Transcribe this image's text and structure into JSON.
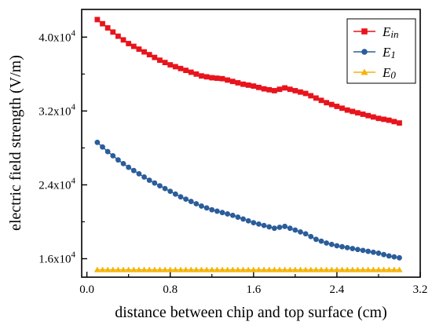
{
  "chart_data": {
    "type": "line",
    "xlabel": "distance between chip and top surface (cm)",
    "ylabel": "electric field strength  (V/m)",
    "xlim": [
      -0.05,
      3.2
    ],
    "ylim": [
      14000,
      43000
    ],
    "xticks": [
      0.0,
      0.8,
      1.6,
      2.4,
      3.2
    ],
    "xtick_labels": [
      "0.0",
      "0.8",
      "1.6",
      "2.4",
      "3.2"
    ],
    "yticks": [
      16000,
      24000,
      32000,
      40000
    ],
    "ytick_labels": [
      {
        "base": "1.6x10",
        "exp": "4"
      },
      {
        "base": "2.4x10",
        "exp": "4"
      },
      {
        "base": "3.2x10",
        "exp": "4"
      },
      {
        "base": "4.0x10",
        "exp": "4"
      }
    ],
    "legend_position": "top-right",
    "grid": false,
    "series": [
      {
        "name": "Ein",
        "legend_main": "E",
        "legend_sub": "in",
        "color": "#e8141c",
        "marker": "square",
        "x": [
          0.1,
          0.2,
          0.3,
          0.4,
          0.5,
          0.6,
          0.7,
          0.8,
          0.9,
          1.0,
          1.1,
          1.2,
          1.3,
          1.4,
          1.5,
          1.6,
          1.7,
          1.8,
          1.9,
          2.0,
          2.1,
          2.2,
          2.3,
          2.4,
          2.5,
          2.6,
          2.7,
          2.8,
          2.9,
          3.0
        ],
        "y": [
          41900,
          41000,
          40100,
          39300,
          38700,
          38100,
          37500,
          37000,
          36600,
          36200,
          35800,
          35600,
          35500,
          35200,
          34900,
          34700,
          34400,
          34200,
          34500,
          34200,
          33900,
          33400,
          32900,
          32500,
          32100,
          31800,
          31500,
          31200,
          31000,
          30700
        ]
      },
      {
        "name": "E1",
        "legend_main": "E",
        "legend_sub": "1",
        "color": "#2a5d9a",
        "marker": "circle",
        "x": [
          0.1,
          0.2,
          0.3,
          0.4,
          0.5,
          0.6,
          0.7,
          0.8,
          0.9,
          1.0,
          1.1,
          1.2,
          1.3,
          1.4,
          1.5,
          1.6,
          1.7,
          1.8,
          1.9,
          2.0,
          2.1,
          2.2,
          2.3,
          2.4,
          2.5,
          2.6,
          2.7,
          2.8,
          2.9,
          3.0
        ],
        "y": [
          28600,
          27600,
          26700,
          25900,
          25200,
          24500,
          23900,
          23300,
          22700,
          22200,
          21700,
          21300,
          21000,
          20700,
          20300,
          19900,
          19600,
          19300,
          19500,
          19100,
          18700,
          18100,
          17700,
          17400,
          17200,
          17000,
          16800,
          16600,
          16300,
          16100
        ]
      },
      {
        "name": "E0",
        "legend_main": "E",
        "legend_sub": "0",
        "color": "#f5b40a",
        "marker": "triangle",
        "x": [
          0.1,
          0.2,
          0.3,
          0.4,
          0.5,
          0.6,
          0.7,
          0.8,
          0.9,
          1.0,
          1.1,
          1.2,
          1.3,
          1.4,
          1.5,
          1.6,
          1.7,
          1.8,
          1.9,
          2.0,
          2.1,
          2.2,
          2.3,
          2.4,
          2.5,
          2.6,
          2.7,
          2.8,
          2.9,
          3.0
        ],
        "y": [
          14800,
          14800,
          14800,
          14800,
          14800,
          14800,
          14800,
          14800,
          14800,
          14800,
          14800,
          14800,
          14800,
          14800,
          14800,
          14800,
          14800,
          14800,
          14800,
          14800,
          14800,
          14800,
          14800,
          14800,
          14800,
          14800,
          14800,
          14800,
          14800,
          14800
        ]
      }
    ]
  }
}
